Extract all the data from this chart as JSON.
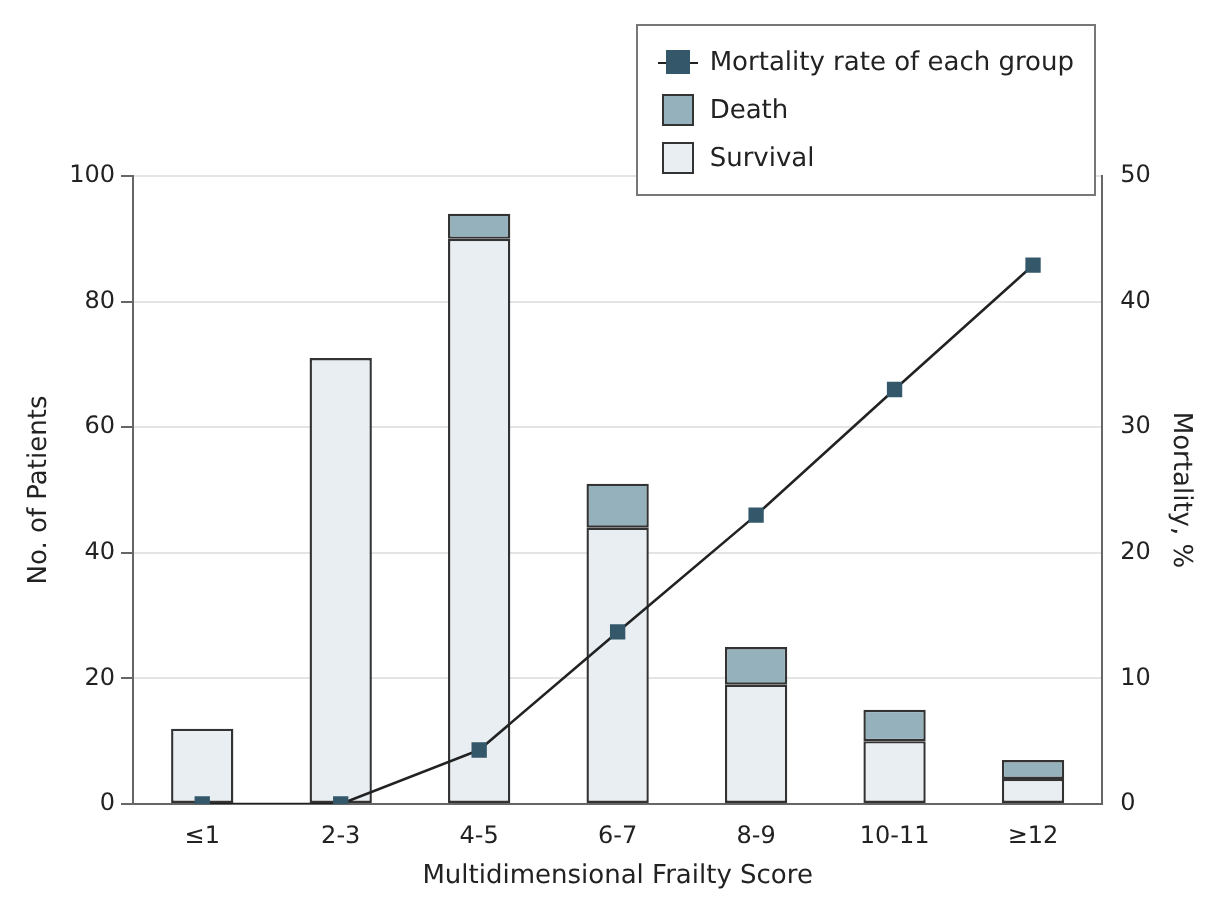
{
  "chart_data": {
    "type": "bar",
    "stacked": true,
    "xlabel": "Multidimensional Frailty Score",
    "ylabel": "No. of Patients",
    "y2label": "Mortality, %",
    "categories": [
      "≤1",
      "2-3",
      "4-5",
      "6-7",
      "8-9",
      "10-11",
      "≥12"
    ],
    "series": [
      {
        "name": "Survival",
        "color": "#e8eef2",
        "values": [
          12,
          71,
          90,
          44,
          19,
          10,
          4
        ]
      },
      {
        "name": "Death",
        "color": "#94b1bc",
        "values": [
          0,
          0,
          4,
          7,
          6,
          5,
          3
        ]
      },
      {
        "name": "Mortality rate of each group",
        "type": "line",
        "axis": "y2",
        "color": "#34586a",
        "values": [
          0,
          0,
          4.3,
          13.7,
          23,
          33,
          42.9
        ]
      }
    ],
    "ylim": [
      0,
      100
    ],
    "yticks": [
      0,
      20,
      40,
      60,
      80,
      100
    ],
    "y2lim": [
      0,
      50
    ],
    "y2ticks": [
      0,
      10,
      20,
      30,
      40,
      50
    ],
    "grid": "y",
    "legend": "top right",
    "marker": "square",
    "line_style": "solid"
  }
}
